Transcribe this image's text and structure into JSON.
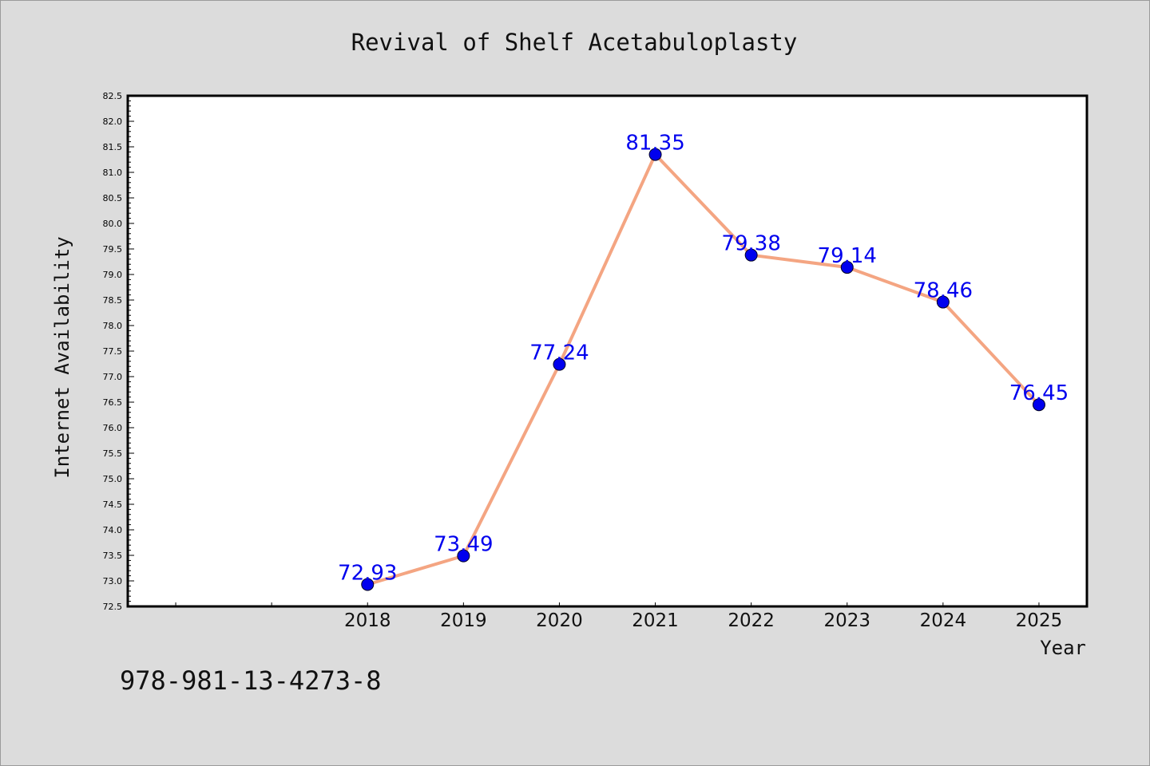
{
  "chart_data": {
    "type": "line",
    "title": "Revival of Shelf Acetabuloplasty",
    "xlabel": "Year",
    "ylabel": "Internet Availability",
    "categories": [
      "2018",
      "2019",
      "2020",
      "2021",
      "2022",
      "2023",
      "2024",
      "2025"
    ],
    "series": [
      {
        "values": [
          72.93,
          73.49,
          77.24,
          81.35,
          79.38,
          79.14,
          78.46,
          76.45
        ]
      }
    ],
    "data_labels": [
      "72.93",
      "73.49",
      "77.24",
      "81.35",
      "79.38",
      "79.14",
      "78.46",
      "76.45"
    ],
    "ylim": [
      72.5,
      82.5
    ],
    "y_tick_step": 0.5,
    "y_tick_labels": [
      "72.5",
      "73.0",
      "73.5",
      "74.0",
      "74.5",
      "75.0",
      "75.5",
      "76.0",
      "76.5",
      "77.0",
      "77.5",
      "78.0",
      "78.5",
      "79.0",
      "79.5",
      "80.0",
      "80.5",
      "81.0",
      "81.5",
      "82.0",
      "82.5"
    ],
    "x_slots": 10,
    "x_offset_slots": 2,
    "grid": false,
    "line_color": "#f4a582",
    "marker_color": "#0000ee",
    "label_color": "#0000ee"
  },
  "footer": {
    "isbn": "978-981-13-4273-8"
  }
}
